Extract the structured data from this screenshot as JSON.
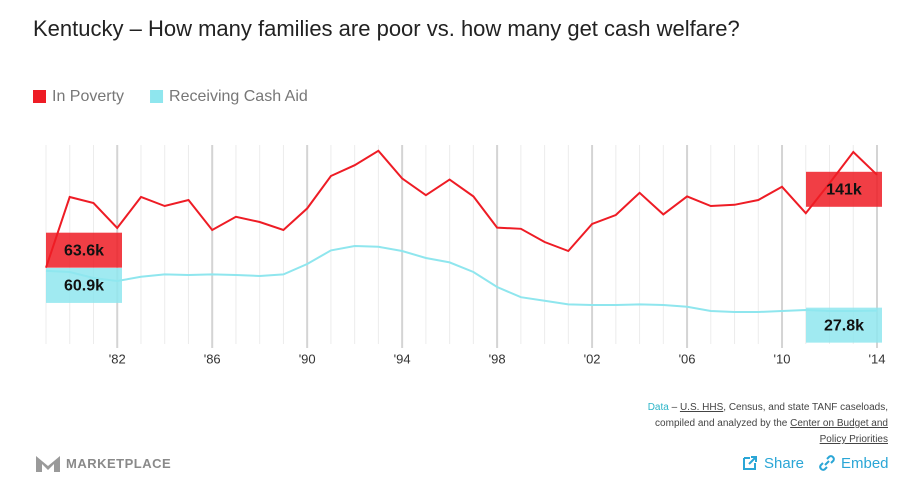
{
  "chart_data": {
    "type": "line",
    "title": "Kentucky – How many families are poor vs. how many get cash welfare?",
    "x": [
      1979,
      1980,
      1981,
      1982,
      1983,
      1984,
      1985,
      1986,
      1987,
      1988,
      1989,
      1990,
      1991,
      1992,
      1993,
      1994,
      1995,
      1996,
      1997,
      1998,
      1999,
      2000,
      2001,
      2002,
      2003,
      2004,
      2005,
      2006,
      2007,
      2008,
      2009,
      2010,
      2011,
      2012,
      2013,
      2014
    ],
    "xlim": [
      1979,
      2014
    ],
    "xticks": [
      {
        "value": 1982,
        "label": "'82"
      },
      {
        "value": 1986,
        "label": "'86"
      },
      {
        "value": 1990,
        "label": "'90"
      },
      {
        "value": 1994,
        "label": "'94"
      },
      {
        "value": 1998,
        "label": "'98"
      },
      {
        "value": 2002,
        "label": "'02"
      },
      {
        "value": 2006,
        "label": "'06"
      },
      {
        "value": 2010,
        "label": "'10"
      },
      {
        "value": 2014,
        "label": "'14"
      }
    ],
    "ylim": [
      0,
      170
    ],
    "grid": true,
    "series": [
      {
        "name": "In Poverty",
        "color": "#ee1c25",
        "values": [
          63.6,
          122.5,
          117.5,
          96.7,
          122.5,
          115,
          120,
          95,
          106,
          101.7,
          95,
          113,
          140,
          149,
          161,
          138,
          124,
          137,
          123,
          97,
          96,
          85,
          77.5,
          100,
          107.5,
          126,
          108,
          123,
          115,
          116,
          120,
          131,
          109,
          134,
          160,
          141
        ],
        "value_labels": [
          "63.6k",
          null,
          null,
          null,
          null,
          null,
          null,
          null,
          null,
          null,
          null,
          null,
          null,
          null,
          null,
          null,
          null,
          null,
          null,
          null,
          null,
          null,
          null,
          null,
          null,
          null,
          null,
          null,
          null,
          null,
          null,
          null,
          null,
          null,
          null,
          "141k"
        ]
      },
      {
        "name": "Receiving Cash Aid",
        "color": "#8fe6ee",
        "values": [
          60.9,
          60,
          55,
          52.5,
          56,
          58,
          57.5,
          58,
          57.5,
          56.7,
          58,
          66.7,
          78,
          81.7,
          81,
          77.5,
          71.7,
          68,
          60,
          47.5,
          39,
          36,
          33,
          32.5,
          32.5,
          33,
          32.5,
          31,
          27.5,
          26.7,
          26.7,
          27.5,
          28.3,
          27.5,
          27.5,
          27.8
        ],
        "value_labels": [
          "60.9k",
          null,
          null,
          null,
          null,
          null,
          null,
          null,
          null,
          null,
          null,
          null,
          null,
          null,
          null,
          null,
          null,
          null,
          null,
          null,
          null,
          null,
          null,
          null,
          null,
          null,
          null,
          null,
          null,
          null,
          null,
          null,
          null,
          null,
          null,
          "27.8k"
        ]
      }
    ]
  },
  "source": [
    "Data",
    " – ",
    "U.S. HHS",
    ", Census, and state TANF caseloads,",
    "compiled and analyzed by the ",
    "Center on Budget and",
    "Policy Priorities"
  ],
  "brand": "MARKETPLACE",
  "buttons": [
    "Share",
    "Embed"
  ]
}
